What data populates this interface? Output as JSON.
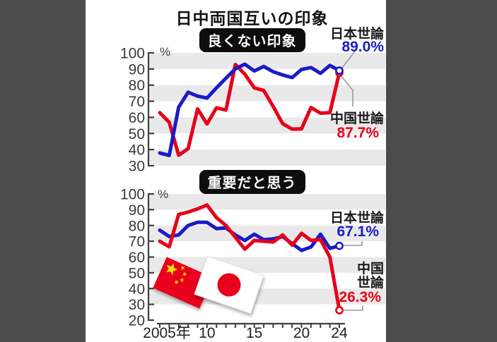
{
  "window": {
    "letterbox_color": "#4b4b4b",
    "background": "#ffffff"
  },
  "title": "日中両国互いの印象",
  "decorations": {
    "flag_icons": [
      "china-flag-icon",
      "japan-flag-icon"
    ]
  },
  "colors": {
    "japan_series": "#1b1bc8",
    "china_series": "#e60019",
    "grid_band": "#e9e9e9",
    "axis": "#3f3f3f",
    "leader_line": "#999999",
    "badge_bg": "#0d0d0d",
    "badge_text": "#ffffff"
  },
  "chart_data": [
    {
      "type": "line",
      "title": "良くない印象",
      "unit": "%",
      "ylim": [
        30,
        100
      ],
      "y_ticks": [
        30,
        40,
        50,
        60,
        70,
        80,
        90,
        100
      ],
      "grid_bands": [
        [
          90,
          100
        ],
        [
          70,
          80
        ],
        [
          50,
          60
        ],
        [
          30,
          40
        ]
      ],
      "x_axis_visible": false,
      "years": [
        2005,
        2006,
        2007,
        2008,
        2009,
        2010,
        2011,
        2012,
        2013,
        2014,
        2015,
        2016,
        2017,
        2018,
        2019,
        2020,
        2021,
        2022,
        2023,
        2024
      ],
      "series": [
        {
          "name": "日本世論",
          "color": "#1b1bc8",
          "end_label": "89.0%",
          "values": [
            37.9,
            36.4,
            66.3,
            75.6,
            73.2,
            72.0,
            78.3,
            84.3,
            90.1,
            93.0,
            88.8,
            91.6,
            88.3,
            86.3,
            84.7,
            89.7,
            90.9,
            87.3,
            92.2,
            89.0
          ]
        },
        {
          "name": "中国世論",
          "color": "#e60019",
          "end_label": "87.7%",
          "values": [
            62.9,
            56.9,
            36.5,
            40.6,
            65.2,
            55.9,
            65.9,
            64.5,
            92.8,
            86.8,
            78.3,
            76.7,
            66.8,
            56.1,
            52.7,
            52.9,
            66.1,
            62.6,
            62.9,
            87.7
          ]
        }
      ]
    },
    {
      "type": "line",
      "title": "重要だと思う",
      "unit": "%",
      "ylim": [
        20,
        100
      ],
      "y_ticks": [
        20,
        30,
        40,
        50,
        60,
        70,
        80,
        90,
        100
      ],
      "grid_bands": [
        [
          90,
          100
        ],
        [
          70,
          80
        ],
        [
          50,
          60
        ],
        [
          30,
          40
        ]
      ],
      "x_axis_visible": true,
      "x_tick_labels": [
        {
          "year": 2005,
          "text": "2005年"
        },
        {
          "year": 2010,
          "text": "10"
        },
        {
          "year": 2015,
          "text": "15"
        },
        {
          "year": 2020,
          "text": "20"
        },
        {
          "year": 2024,
          "text": "24"
        }
      ],
      "years": [
        2005,
        2006,
        2007,
        2008,
        2009,
        2010,
        2011,
        2012,
        2013,
        2014,
        2015,
        2016,
        2017,
        2018,
        2019,
        2020,
        2021,
        2022,
        2023,
        2024
      ],
      "series": [
        {
          "name": "日本世論",
          "color": "#1b1bc8",
          "end_label": "67.1%",
          "values": [
            77,
            73,
            74,
            80,
            82,
            82,
            78,
            78.5,
            74,
            70.5,
            74.5,
            71,
            71.5,
            73,
            68.5,
            64.2,
            66.4,
            74.5,
            65.5,
            67.1
          ]
        },
        {
          "name": "中国世論",
          "name_lines": [
            "中国",
            "世論"
          ],
          "color": "#e60019",
          "end_label": "26.3%",
          "values": [
            70,
            66.5,
            87,
            88.5,
            90.5,
            93,
            85,
            80,
            72.5,
            65,
            70.5,
            70,
            69.5,
            74,
            67.5,
            75,
            70.5,
            71,
            60,
            26.3
          ]
        }
      ]
    }
  ]
}
